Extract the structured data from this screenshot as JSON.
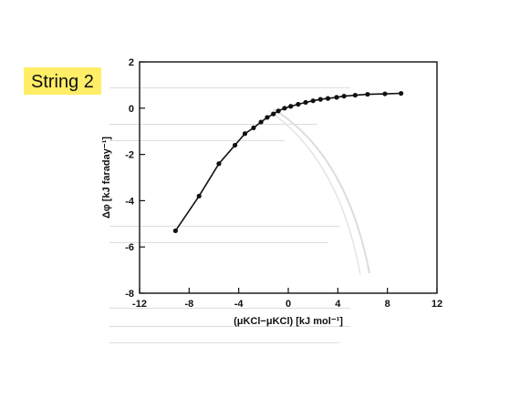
{
  "slide": {
    "label": "String 2"
  },
  "chart_data": {
    "type": "line",
    "title": "",
    "xlabel": "(μKCl−μKCl) [kJ mol⁻¹]",
    "ylabel": "Δφ [kJ faraday⁻¹]",
    "xlim": [
      -12,
      12
    ],
    "ylim": [
      -8,
      2
    ],
    "xticks": [
      "-12",
      "-8",
      "-4",
      "0",
      "4",
      "8",
      "12"
    ],
    "yticks": [
      "2",
      "0",
      "-2",
      "-4",
      "-6",
      "-8"
    ],
    "grid": false,
    "series": [
      {
        "x": [
          -9.1,
          -7.2,
          -5.6,
          -4.3,
          -3.5,
          -2.8,
          -2.2,
          -1.7,
          -1.2,
          -0.8,
          -0.3,
          0.2,
          0.8,
          1.4,
          2.0,
          2.6,
          3.2,
          3.9,
          4.5,
          5.4,
          6.4,
          7.8,
          9.1
        ],
        "y": [
          -5.3,
          -3.8,
          -2.4,
          -1.6,
          -1.1,
          -0.85,
          -0.6,
          -0.4,
          -0.25,
          -0.12,
          0.0,
          0.08,
          0.17,
          0.25,
          0.32,
          0.38,
          0.42,
          0.47,
          0.52,
          0.56,
          0.6,
          0.62,
          0.64
        ]
      }
    ]
  }
}
